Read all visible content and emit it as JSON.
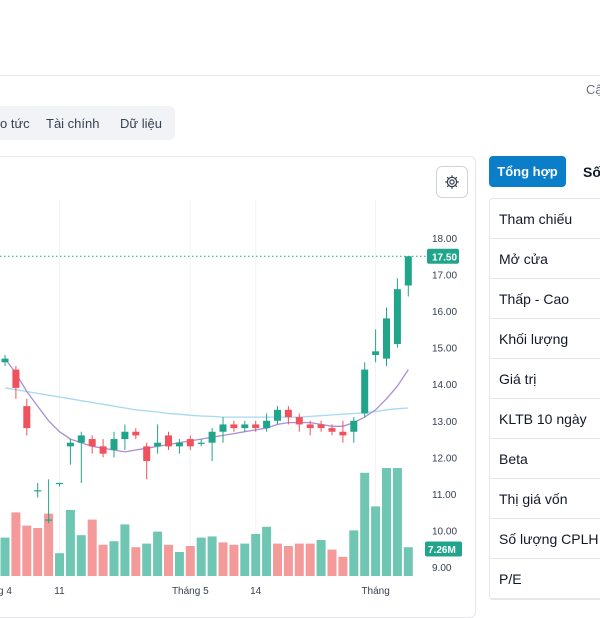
{
  "header": {
    "update_text": "Cậ"
  },
  "tabs": [
    {
      "label": "o tức"
    },
    {
      "label": "Tài chính"
    },
    {
      "label": "Dữ liệu"
    }
  ],
  "right_panel": {
    "tabs": [
      {
        "label": "Tổng hợp",
        "active": true
      },
      {
        "label": "Số"
      }
    ],
    "rows": [
      {
        "label": "Tham chiếu"
      },
      {
        "label": "Mở cửa"
      },
      {
        "label": "Thấp - Cao"
      },
      {
        "label": "Khối lượng"
      },
      {
        "label": "Giá trị"
      },
      {
        "label": "KLTB 10 ngày"
      },
      {
        "label": "Beta"
      },
      {
        "label": "Thị giá vốn"
      },
      {
        "label": "Số lượng CPLH"
      },
      {
        "label": "P/E"
      }
    ]
  },
  "chart_data": {
    "type": "candlestick",
    "y_ticks": [
      "18.00",
      "17.00",
      "16.00",
      "15.00",
      "14.00",
      "13.00",
      "12.00",
      "11.00",
      "10.00",
      "9.00"
    ],
    "ylim": [
      9,
      18
    ],
    "x_labels": [
      {
        "index": 0,
        "label": "g 4"
      },
      {
        "index": 5,
        "label": "11"
      },
      {
        "index": 17,
        "label": "Tháng 5"
      },
      {
        "index": 23,
        "label": "14"
      },
      {
        "index": 34,
        "label": "Tháng"
      }
    ],
    "current_price": {
      "value": 17.5,
      "label": "17.50"
    },
    "volume_label": "7.26M",
    "candles": [
      {
        "o": 14.6,
        "c": 14.7,
        "h": 14.8,
        "l": 14.5
      },
      {
        "o": 14.4,
        "c": 13.9,
        "h": 14.5,
        "l": 13.6
      },
      {
        "o": 13.4,
        "c": 12.8,
        "h": 13.6,
        "l": 12.6
      },
      {
        "o": 11.1,
        "c": 11.1,
        "h": 11.3,
        "l": 10.9
      },
      {
        "o": 10.3,
        "c": 10.3,
        "h": 11.4,
        "l": 10.2
      },
      {
        "o": 11.3,
        "c": 11.3,
        "h": 11.3,
        "l": 11.2
      },
      {
        "o": 12.3,
        "c": 12.4,
        "h": 12.5,
        "l": 11.8
      },
      {
        "o": 12.4,
        "c": 12.6,
        "h": 12.7,
        "l": 11.3
      },
      {
        "o": 12.5,
        "c": 12.3,
        "h": 12.6,
        "l": 12.1
      },
      {
        "o": 12.3,
        "c": 12.1,
        "h": 12.5,
        "l": 12.0
      },
      {
        "o": 12.2,
        "c": 12.5,
        "h": 12.7,
        "l": 12.0
      },
      {
        "o": 12.5,
        "c": 12.7,
        "h": 12.9,
        "l": 12.2
      },
      {
        "o": 12.7,
        "c": 12.6,
        "h": 12.8,
        "l": 12.5
      },
      {
        "o": 12.3,
        "c": 11.9,
        "h": 12.4,
        "l": 11.4
      },
      {
        "o": 12.3,
        "c": 12.4,
        "h": 12.9,
        "l": 12.1
      },
      {
        "o": 12.6,
        "c": 12.3,
        "h": 12.7,
        "l": 12.2
      },
      {
        "o": 12.3,
        "c": 12.4,
        "h": 12.5,
        "l": 12.1
      },
      {
        "o": 12.5,
        "c": 12.3,
        "h": 12.6,
        "l": 12.2
      },
      {
        "o": 12.4,
        "c": 12.4,
        "h": 12.5,
        "l": 12.3
      },
      {
        "o": 12.4,
        "c": 12.7,
        "h": 12.8,
        "l": 11.9
      },
      {
        "o": 12.7,
        "c": 12.9,
        "h": 13.1,
        "l": 12.4
      },
      {
        "o": 12.9,
        "c": 12.8,
        "h": 13.0,
        "l": 12.7
      },
      {
        "o": 12.8,
        "c": 12.9,
        "h": 13.0,
        "l": 12.7
      },
      {
        "o": 12.9,
        "c": 12.8,
        "h": 13.0,
        "l": 12.7
      },
      {
        "o": 12.8,
        "c": 13.0,
        "h": 13.2,
        "l": 12.7
      },
      {
        "o": 13.0,
        "c": 13.3,
        "h": 13.4,
        "l": 12.9
      },
      {
        "o": 13.3,
        "c": 13.1,
        "h": 13.4,
        "l": 12.9
      },
      {
        "o": 13.1,
        "c": 12.9,
        "h": 13.2,
        "l": 12.7
      },
      {
        "o": 12.9,
        "c": 12.8,
        "h": 13.0,
        "l": 12.6
      },
      {
        "o": 12.9,
        "c": 12.8,
        "h": 13.0,
        "l": 12.7
      },
      {
        "o": 12.8,
        "c": 12.7,
        "h": 12.9,
        "l": 12.6
      },
      {
        "o": 12.7,
        "c": 12.6,
        "h": 13.0,
        "l": 12.4
      },
      {
        "o": 12.7,
        "c": 13.0,
        "h": 13.1,
        "l": 12.4
      },
      {
        "o": 13.2,
        "c": 14.4,
        "h": 14.6,
        "l": 13.1
      },
      {
        "o": 14.8,
        "c": 14.9,
        "h": 15.5,
        "l": 14.6
      },
      {
        "o": 14.7,
        "c": 15.8,
        "h": 16.1,
        "l": 14.5
      },
      {
        "o": 15.1,
        "c": 16.6,
        "h": 16.9,
        "l": 15.0
      },
      {
        "o": 16.7,
        "c": 17.5,
        "h": 17.5,
        "l": 16.4
      }
    ],
    "volumes": [
      {
        "v": 0.32,
        "up": true
      },
      {
        "v": 0.53,
        "up": false
      },
      {
        "v": 0.42,
        "up": false
      },
      {
        "v": 0.4,
        "up": false
      },
      {
        "v": 0.52,
        "up": false
      },
      {
        "v": 0.19,
        "up": true
      },
      {
        "v": 0.55,
        "up": true
      },
      {
        "v": 0.34,
        "up": true
      },
      {
        "v": 0.47,
        "up": false
      },
      {
        "v": 0.26,
        "up": false
      },
      {
        "v": 0.29,
        "up": true
      },
      {
        "v": 0.43,
        "up": true
      },
      {
        "v": 0.24,
        "up": false
      },
      {
        "v": 0.27,
        "up": true
      },
      {
        "v": 0.37,
        "up": true
      },
      {
        "v": 0.26,
        "up": false
      },
      {
        "v": 0.2,
        "up": true
      },
      {
        "v": 0.25,
        "up": false
      },
      {
        "v": 0.32,
        "up": true
      },
      {
        "v": 0.33,
        "up": true
      },
      {
        "v": 0.28,
        "up": false
      },
      {
        "v": 0.26,
        "up": false
      },
      {
        "v": 0.27,
        "up": true
      },
      {
        "v": 0.35,
        "up": true
      },
      {
        "v": 0.41,
        "up": true
      },
      {
        "v": 0.27,
        "up": false
      },
      {
        "v": 0.25,
        "up": false
      },
      {
        "v": 0.27,
        "up": false
      },
      {
        "v": 0.27,
        "up": false
      },
      {
        "v": 0.3,
        "up": true
      },
      {
        "v": 0.22,
        "up": false
      },
      {
        "v": 0.16,
        "up": false
      },
      {
        "v": 0.38,
        "up": true
      },
      {
        "v": 0.86,
        "up": true
      },
      {
        "v": 0.58,
        "up": true
      },
      {
        "v": 0.9,
        "up": true
      },
      {
        "v": 0.9,
        "up": true
      },
      {
        "v": 0.24,
        "up": true
      }
    ],
    "ma_short": [
      14.7,
      14.3,
      13.8,
      13.4,
      13.0,
      12.7,
      12.5,
      12.4,
      12.3,
      12.25,
      12.2,
      12.15,
      12.2,
      12.25,
      12.3,
      12.35,
      12.4,
      12.45,
      12.5,
      12.55,
      12.6,
      12.65,
      12.7,
      12.75,
      12.8,
      12.9,
      12.95,
      12.95,
      12.95,
      12.9,
      12.85,
      12.85,
      12.95,
      13.1,
      13.3,
      13.6,
      13.95,
      14.4
    ],
    "ma_long": [
      13.9,
      13.85,
      13.8,
      13.75,
      13.7,
      13.65,
      13.6,
      13.55,
      13.5,
      13.45,
      13.4,
      13.35,
      13.3,
      13.27,
      13.24,
      13.2,
      13.18,
      13.15,
      13.13,
      13.12,
      13.1,
      13.1,
      13.1,
      13.1,
      13.1,
      13.1,
      13.1,
      13.1,
      13.12,
      13.14,
      13.16,
      13.18,
      13.2,
      13.22,
      13.25,
      13.3,
      13.33,
      13.35
    ],
    "colors": {
      "up": "#21a58a",
      "down": "#f0515d",
      "vol_up": "#6fc6b3",
      "vol_down": "#f49a9a",
      "ma_short": "#a990d6",
      "ma_long": "#a7d9ef",
      "price_line": "#21a58a"
    }
  }
}
